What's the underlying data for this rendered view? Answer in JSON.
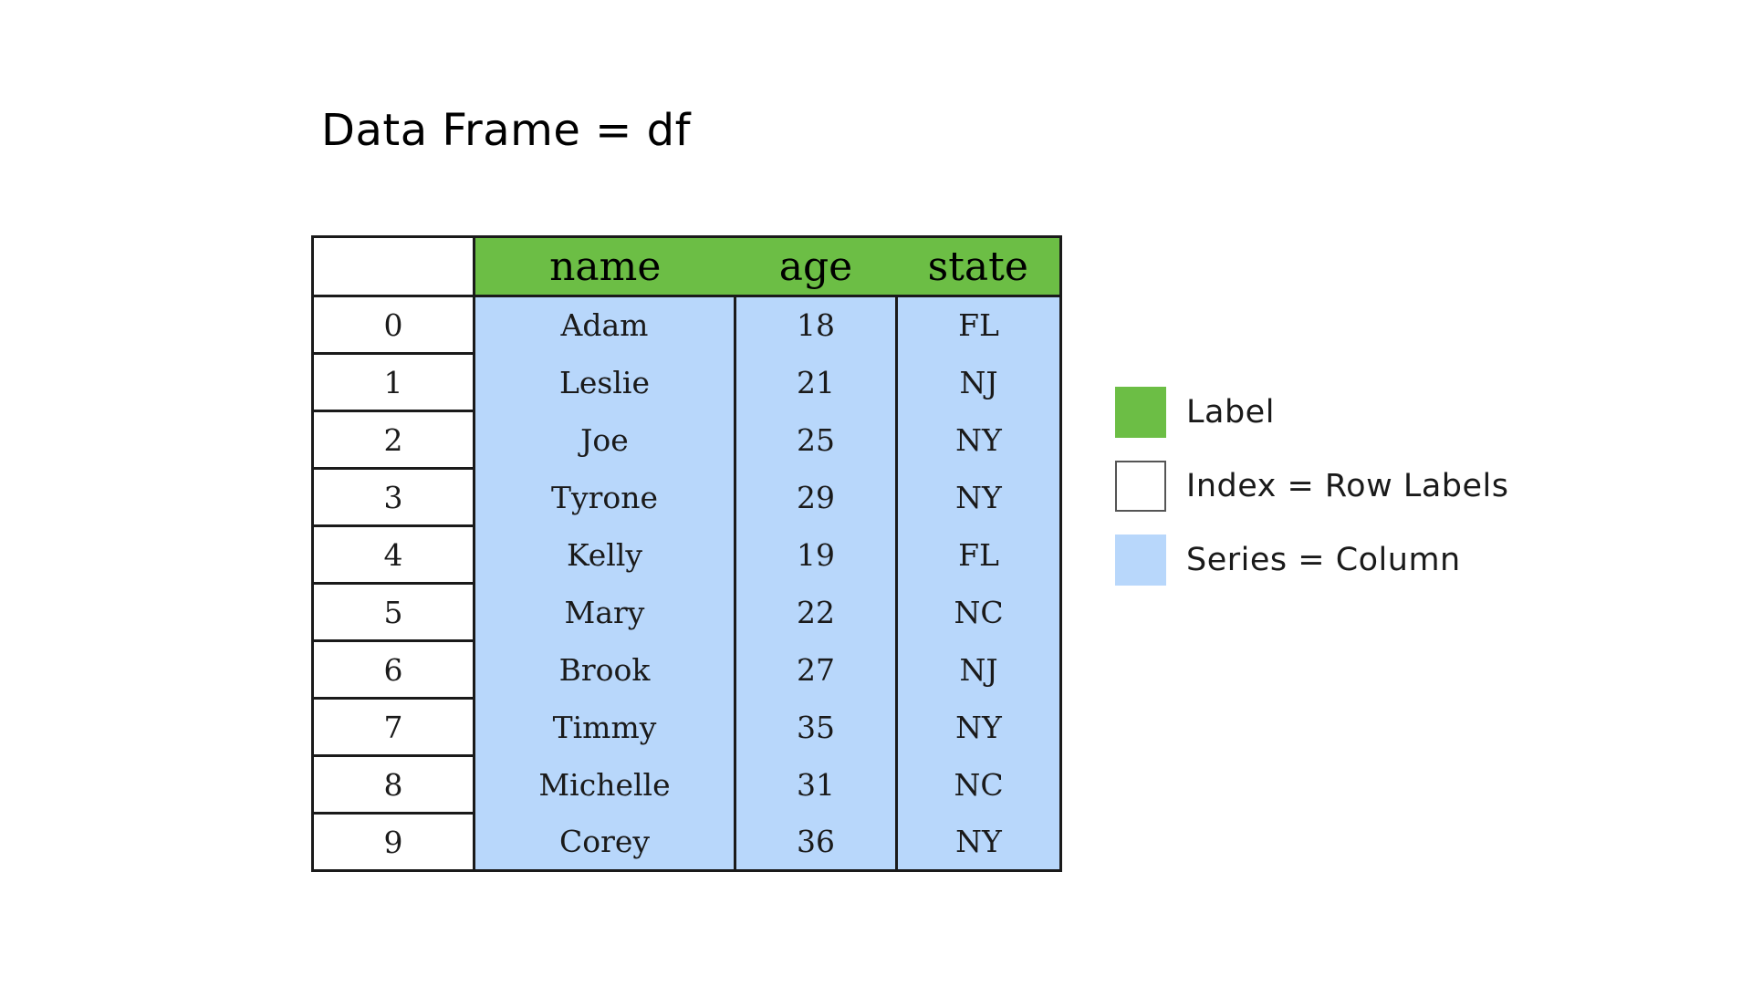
{
  "title": "Data Frame = df",
  "table": {
    "columns": [
      "name",
      "age",
      "state"
    ],
    "rows": [
      {
        "index": "0",
        "name": "Adam",
        "age": "18",
        "state": "FL"
      },
      {
        "index": "1",
        "name": "Leslie",
        "age": "21",
        "state": "NJ"
      },
      {
        "index": "2",
        "name": "Joe",
        "age": "25",
        "state": "NY"
      },
      {
        "index": "3",
        "name": "Tyrone",
        "age": "29",
        "state": "NY"
      },
      {
        "index": "4",
        "name": "Kelly",
        "age": "19",
        "state": "FL"
      },
      {
        "index": "5",
        "name": "Mary",
        "age": "22",
        "state": "NC"
      },
      {
        "index": "6",
        "name": "Brook",
        "age": "27",
        "state": "NJ"
      },
      {
        "index": "7",
        "name": "Timmy",
        "age": "35",
        "state": "NY"
      },
      {
        "index": "8",
        "name": "Michelle",
        "age": "31",
        "state": "NC"
      },
      {
        "index": "9",
        "name": "Corey",
        "age": "36",
        "state": "NY"
      }
    ]
  },
  "legend": [
    {
      "label": "Label",
      "color": "#6cbe45"
    },
    {
      "label": "Index = Row Labels",
      "color": "#ffffff"
    },
    {
      "label": "Series = Column",
      "color": "#b8d7fb"
    }
  ]
}
